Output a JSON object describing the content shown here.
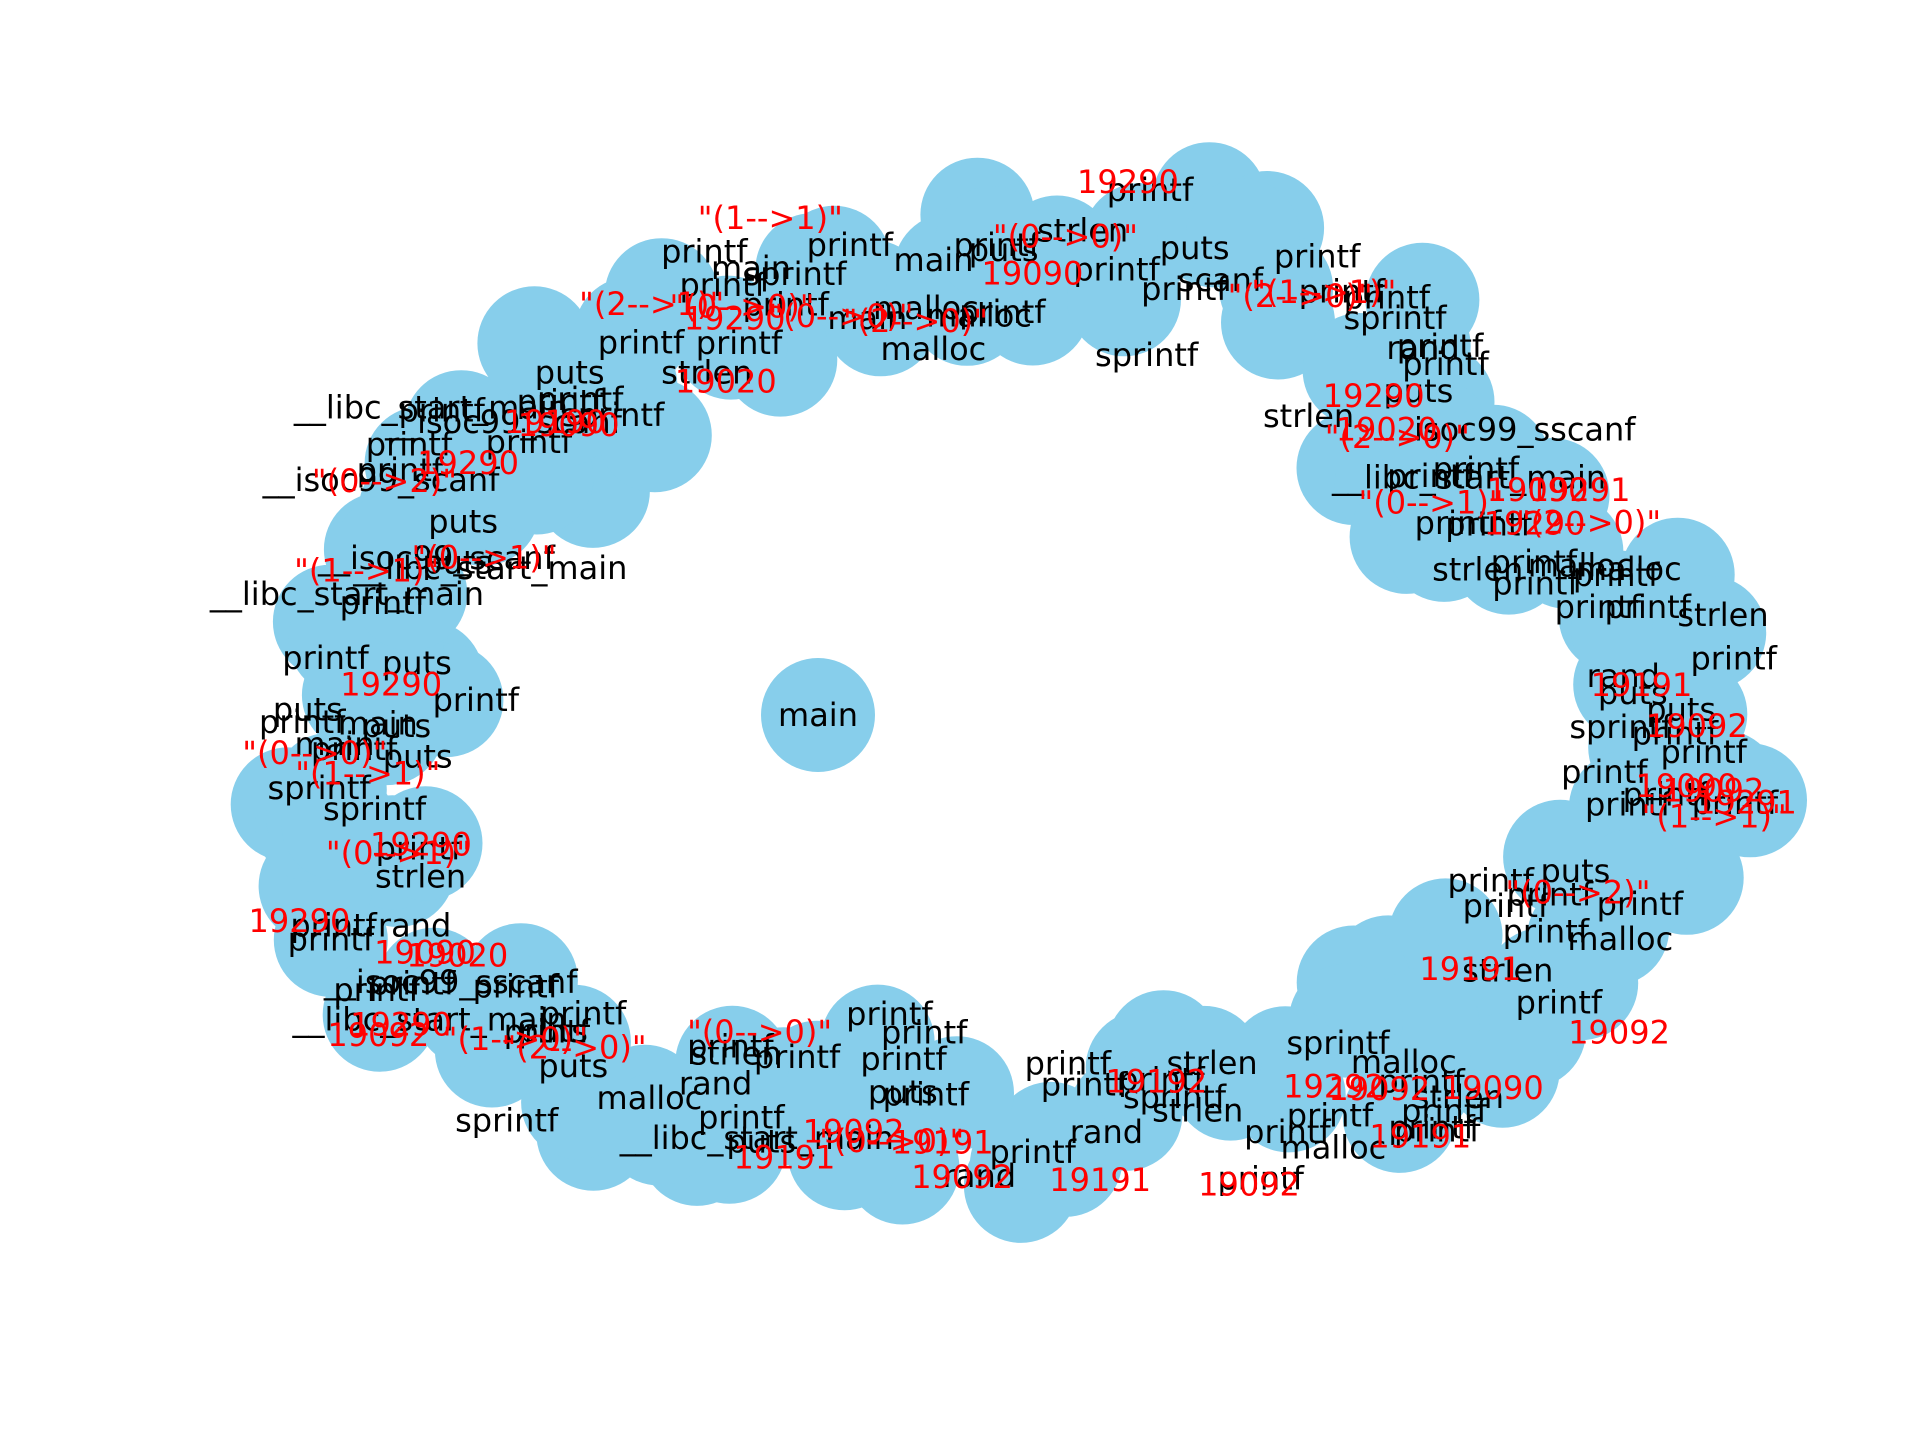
{
  "colors": {
    "node": "#87ceeb",
    "node_text": "#000000",
    "edge_label": "#ff0000"
  },
  "center_node": "main",
  "node_labels": [
    "puts",
    "printf",
    "printf",
    "strlen",
    "printf",
    "printf",
    "puts",
    "sprintf",
    "printf",
    "scanf",
    "printf",
    "printf",
    "printf",
    "sprintf",
    "strlen",
    "printf",
    "puts",
    "printf",
    "rand",
    "printf",
    "isoc99_sscanf",
    "__libc_start_main",
    "printf",
    "printf",
    "strlen",
    "printf",
    "malloc",
    "printf",
    "printf",
    "malloc",
    "printf",
    "printf",
    "puts",
    "printf",
    "strlen",
    "sprintf",
    "printf",
    "printf",
    "rand",
    "printf",
    "puts",
    "printf",
    "printf",
    "printf",
    "printf",
    "puts",
    "printf",
    "printf",
    "malloc",
    "printf",
    "printf",
    "printf",
    "strlen",
    "printf",
    "printf",
    "strlen",
    "printf",
    "malloc",
    "printf",
    "printf",
    "sprintf",
    "printf",
    "malloc",
    "printf",
    "sprintf",
    "printf",
    "strlen",
    "printf",
    "strlen",
    "printf",
    "printf",
    "rand",
    "printf",
    "rand",
    "printf",
    "puts",
    "printf",
    "printf",
    "printf",
    "printf",
    "__libc_start_main",
    "rand",
    "strlen",
    "printf",
    "puts",
    "printf",
    "printf",
    "malloc",
    "puts",
    "sprintf",
    "puts",
    "printf",
    "printf",
    "__libc_start_main",
    "printf",
    "__isoc99_sscanf",
    "rand",
    "printf",
    "printf",
    "strlen",
    "printf",
    "sprintf",
    "printf",
    "sprintf",
    "printf",
    "main",
    "main",
    "puts",
    "printf",
    "puts",
    "printf",
    "puts",
    "__libc_start_main",
    "printf",
    "puts",
    "printf",
    "__isoc99_scanf",
    "__libc_start_main",
    "puts",
    "printf",
    "__isoc99_scanf",
    "puts",
    "printf",
    "__libc_start_main",
    "printf",
    "__isoc99_scanf",
    "printf",
    "printf",
    "puts",
    "printf",
    "sprintf",
    "printf",
    "strlen",
    "printf",
    "main",
    "printf",
    "sprintf",
    "printf",
    "printf",
    "main",
    "malloc",
    "printf",
    "malloc",
    "main",
    "malloc"
  ],
  "edge_labels": [
    "19090",
    "\"(0-->0)\"",
    "19290",
    "\"(2-->0)\"",
    "19290",
    "\"(1-->1)\"",
    "19020",
    "\"(2-->0)\"",
    "\"(0-->1)\"",
    "19090",
    "\"(2-->0)\"",
    "19291",
    "19290",
    "19092",
    "19191",
    "19092",
    "19090",
    "19291",
    "\"(1-->1)\"",
    "\"(0-->2)\"",
    "19092",
    "19191",
    "19090",
    "19092",
    "19191",
    "19292",
    "19092",
    "19191",
    "19192",
    "19092",
    "19191",
    "\"(0-->0)\"",
    "19191",
    "19092",
    "\"(0-->0)\"",
    "\"(2-->0)\"",
    "\"(1-->0)\"",
    "19020",
    "19290",
    "19092",
    "19290",
    "19090",
    "19290",
    "\"(0-->1)\"",
    "\"(1-->1)\"",
    "\"(0-->0)\"",
    "19290",
    "\"(1-->1)\"",
    "\"(0-->2)\"",
    "19290",
    "\"(0-->1)\"",
    "19190",
    "19090",
    "\"(2-->1)\"",
    "19290",
    "\"(0-->0)\"",
    "19020",
    "\"(1-->1)\"",
    "\"(0-->0)\"",
    "\"(2-->0)\""
  ]
}
